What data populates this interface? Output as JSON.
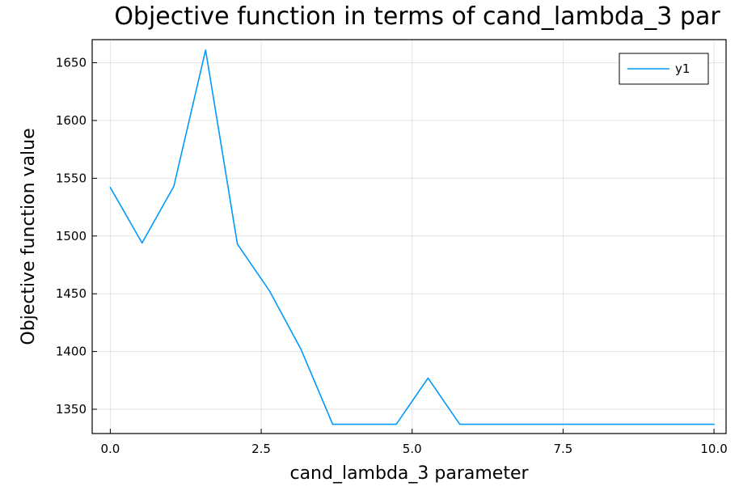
{
  "chart_data": {
    "type": "line",
    "title": "Objective function in terms of cand_lambda_3 par",
    "xlabel": "cand_lambda_3 parameter",
    "ylabel": "Objective function value",
    "xlim": [
      -0.3,
      10.2
    ],
    "ylim": [
      1329,
      1670
    ],
    "x_ticks": [
      0.0,
      2.5,
      5.0,
      7.5,
      10.0
    ],
    "x_tick_labels": [
      "0.0",
      "2.5",
      "5.0",
      "7.5",
      "10.0"
    ],
    "y_ticks": [
      1350,
      1400,
      1450,
      1500,
      1550,
      1600,
      1650
    ],
    "y_tick_labels": [
      "1350",
      "1400",
      "1450",
      "1500",
      "1550",
      "1600",
      "1650"
    ],
    "grid": true,
    "legend_position": "top-right",
    "series": [
      {
        "name": "y1",
        "color": "#009AFA",
        "x": [
          0.0,
          0.5263,
          1.0526,
          1.5789,
          2.1053,
          2.6316,
          3.1579,
          3.6842,
          4.2105,
          4.7368,
          5.2632,
          5.7895,
          6.3158,
          6.8421,
          7.3684,
          7.8947,
          8.4211,
          8.9474,
          9.4737,
          10.0
        ],
        "y": [
          1542,
          1494,
          1543,
          1661,
          1493,
          1453,
          1402,
          1337,
          1337,
          1337,
          1377,
          1337,
          1337,
          1337,
          1337,
          1337,
          1337,
          1337,
          1337,
          1337
        ]
      }
    ]
  }
}
